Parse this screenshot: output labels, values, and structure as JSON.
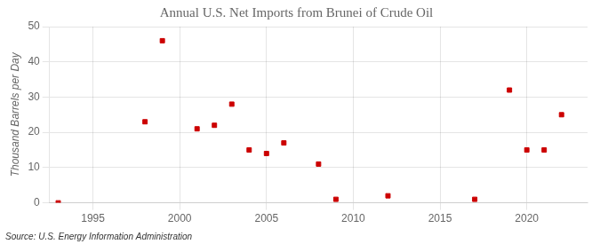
{
  "chart_data": {
    "type": "scatter",
    "title": "Annual U.S. Net Imports from Brunei of Crude Oil",
    "ylabel": "Thousand Barrels per Day",
    "source": "Source: U.S. Energy Information Administration",
    "x": [
      1993,
      1998,
      1999,
      2001,
      2002,
      2003,
      2004,
      2005,
      2006,
      2008,
      2009,
      2012,
      2017,
      2019,
      2020,
      2021,
      2022
    ],
    "values": [
      0,
      23,
      46,
      21,
      22,
      28,
      15,
      14,
      17,
      11,
      1,
      2,
      1,
      32,
      15,
      15,
      25
    ],
    "color": "#cc0000",
    "marker": "square",
    "xlim": [
      1992.5,
      2023.5
    ],
    "xticks": [
      1995,
      2000,
      2005,
      2010,
      2015,
      2020
    ],
    "ylim": [
      0,
      50
    ],
    "yticks": [
      0,
      10,
      20,
      30,
      40,
      50
    ],
    "grid": true
  }
}
